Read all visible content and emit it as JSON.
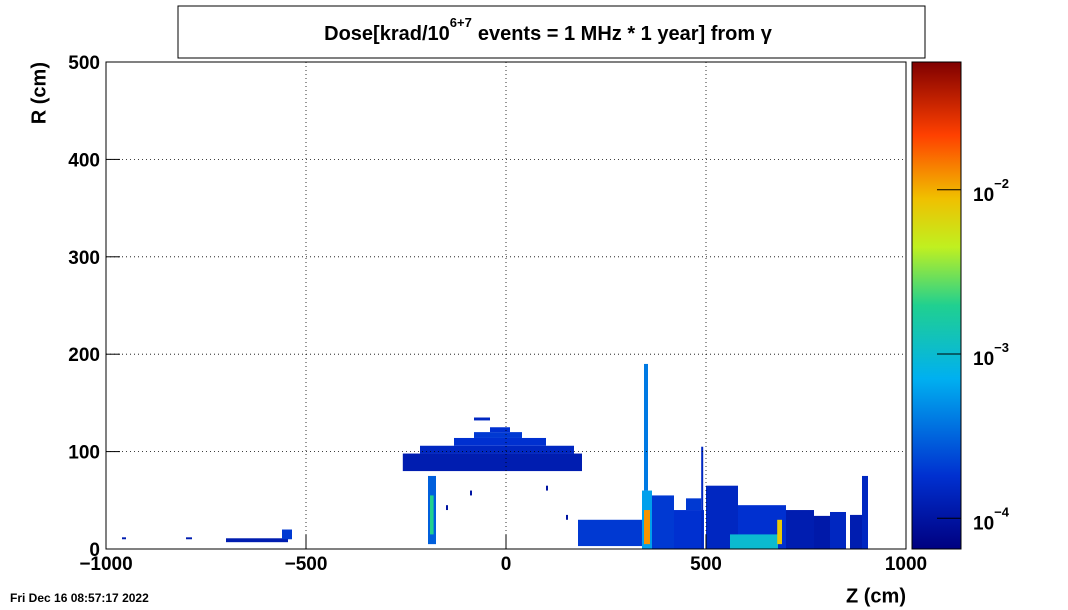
{
  "chart_data": {
    "type": "heatmap",
    "title": {
      "base": "Dose[krad/10",
      "superscript": "6+7",
      "rest": "events = 1 MHz * 1 year] from γ"
    },
    "x_label": "Z (cm)",
    "y_label": "R (cm)",
    "timestamp": "Fri Dec 16 08:57:17 2022",
    "xlim": [
      -1000,
      1000
    ],
    "xticks": [
      {
        "value": -1000,
        "label": "−1000"
      },
      {
        "value": -500,
        "label": "−500"
      },
      0,
      500,
      1000
    ],
    "ylim": [
      0,
      500
    ],
    "yticks": [
      0,
      100,
      200,
      300,
      400,
      500
    ],
    "grid": true,
    "log_z": true,
    "zlim": [
      6.5e-05,
      0.06
    ],
    "zticks": [
      {
        "value": 0.0001,
        "label": "10",
        "exponent": "−4"
      },
      {
        "value": 0.001,
        "label": "10",
        "exponent": "−3"
      },
      {
        "value": 0.01,
        "label": "10",
        "exponent": "−2"
      }
    ],
    "cells": [
      {
        "x0": -258,
        "x1": 190,
        "y0": 80,
        "y1": 98,
        "z": 0.00012
      },
      {
        "x0": -215,
        "x1": 170,
        "y0": 98,
        "y1": 106,
        "z": 0.00015
      },
      {
        "x0": -130,
        "x1": 100,
        "y0": 106,
        "y1": 114,
        "z": 0.00018
      },
      {
        "x0": -80,
        "x1": 40,
        "y0": 114,
        "y1": 120,
        "z": 0.0002
      },
      {
        "x0": -40,
        "x1": 10,
        "y0": 120,
        "y1": 125,
        "z": 0.00018
      },
      {
        "x0": -80,
        "x1": -40,
        "y0": 132,
        "y1": 135,
        "z": 0.00015
      },
      {
        "x0": -195,
        "x1": -175,
        "y0": 5,
        "y1": 75,
        "z": 0.0003
      },
      {
        "x0": -190,
        "x1": -181,
        "y0": 15,
        "y1": 55,
        "z": 0.002
      },
      {
        "x0": -700,
        "x1": -545,
        "y0": 7,
        "y1": 11,
        "z": 0.00012
      },
      {
        "x0": -560,
        "x1": -535,
        "y0": 10,
        "y1": 20,
        "z": 0.0002
      },
      {
        "x0": -960,
        "x1": -950,
        "y0": 10,
        "y1": 12,
        "z": 0.00012
      },
      {
        "x0": -800,
        "x1": -785,
        "y0": 10,
        "y1": 12,
        "z": 0.00012
      },
      {
        "x0": -150,
        "x1": -145,
        "y0": 40,
        "y1": 45,
        "z": 0.0001
      },
      {
        "x0": -90,
        "x1": -85,
        "y0": 55,
        "y1": 60,
        "z": 0.0001
      },
      {
        "x0": 100,
        "x1": 105,
        "y0": 60,
        "y1": 65,
        "z": 0.0001
      },
      {
        "x0": 150,
        "x1": 155,
        "y0": 30,
        "y1": 35,
        "z": 0.0001
      },
      {
        "x0": 180,
        "x1": 340,
        "y0": 3,
        "y1": 30,
        "z": 0.0002
      },
      {
        "x0": 340,
        "x1": 365,
        "y0": 0,
        "y1": 60,
        "z": 0.0006
      },
      {
        "x0": 345,
        "x1": 360,
        "y0": 5,
        "y1": 40,
        "z": 0.012
      },
      {
        "x0": 345,
        "x1": 355,
        "y0": 60,
        "y1": 190,
        "z": 0.0004
      },
      {
        "x0": 365,
        "x1": 420,
        "y0": 0,
        "y1": 55,
        "z": 0.0002
      },
      {
        "x0": 420,
        "x1": 495,
        "y0": 0,
        "y1": 40,
        "z": 0.00018
      },
      {
        "x0": 450,
        "x1": 488,
        "y0": 40,
        "y1": 52,
        "z": 0.0002
      },
      {
        "x0": 488,
        "x1": 493,
        "y0": 0,
        "y1": 105,
        "z": 0.00015
      },
      {
        "x0": 500,
        "x1": 580,
        "y0": 0,
        "y1": 65,
        "z": 0.00015
      },
      {
        "x0": 580,
        "x1": 700,
        "y0": 0,
        "y1": 45,
        "z": 0.00018
      },
      {
        "x0": 560,
        "x1": 680,
        "y0": 0,
        "y1": 15,
        "z": 0.001
      },
      {
        "x0": 678,
        "x1": 690,
        "y0": 5,
        "y1": 30,
        "z": 0.008
      },
      {
        "x0": 700,
        "x1": 770,
        "y0": 0,
        "y1": 40,
        "z": 0.00012
      },
      {
        "x0": 770,
        "x1": 810,
        "y0": 0,
        "y1": 34,
        "z": 0.00011
      },
      {
        "x0": 810,
        "x1": 850,
        "y0": 0,
        "y1": 38,
        "z": 0.00015
      },
      {
        "x0": 860,
        "x1": 900,
        "y0": 0,
        "y1": 35,
        "z": 0.00012
      },
      {
        "x0": 890,
        "x1": 905,
        "y0": 0,
        "y1": 75,
        "z": 0.00015
      }
    ]
  }
}
